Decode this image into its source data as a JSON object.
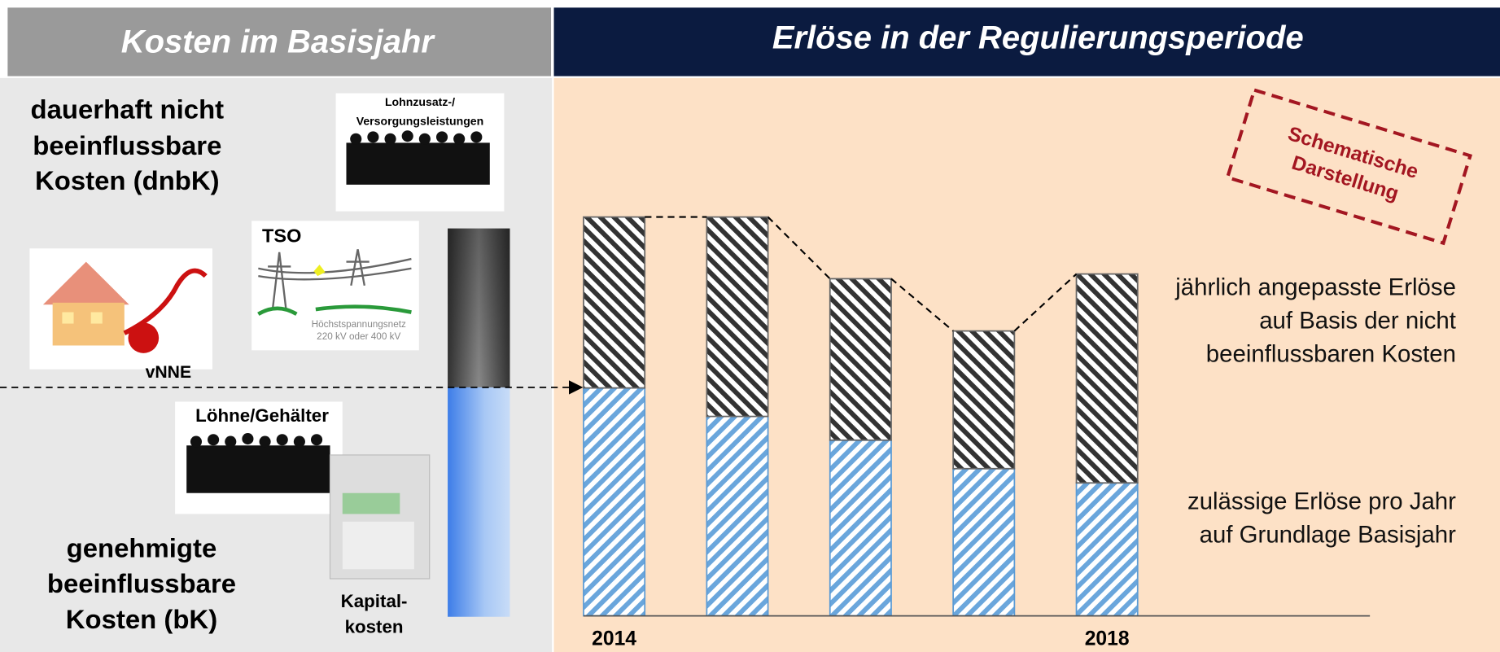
{
  "header": {
    "left_title": "Kosten im Basisjahr",
    "right_title": "Erlöse in der Regulierungsperiode"
  },
  "left": {
    "dnbk_lines": [
      "dauerhaft nicht",
      "beeinflussbare",
      "Kosten (dnbK)"
    ],
    "bk_lines": [
      "genehmigte",
      "beeinflussbare",
      "Kosten (bK)"
    ],
    "pensions_lines": [
      "Lohnzusatz-/",
      "Versorgungsleistungen"
    ],
    "tso": "TSO",
    "grid_lines": [
      "Höchstspannungsnetz",
      "220 kV oder 400 kV"
    ],
    "vnne": "vNNE",
    "wages": "Löhne/Gehälter",
    "capital_lines": [
      "Kapital-",
      "kosten"
    ]
  },
  "stamp_lines": [
    "Schematische",
    "Darstellung"
  ],
  "chart_data": {
    "type": "stacked-bar",
    "categories": [
      "2014",
      null,
      null,
      null,
      "2018"
    ],
    "series": [
      {
        "name": "zulässige Erlöse pro Jahr auf Grundlage Basisjahr",
        "color": "#5b9bd5",
        "values": [
          24,
          21,
          18.5,
          15.5,
          14
        ]
      },
      {
        "name": "jährlich angepasste Erlöse auf Basis der nicht beeinflussbaren Kosten",
        "color": "#333333",
        "values": [
          18,
          21,
          17,
          14.5,
          22
        ]
      }
    ],
    "ylim": [
      0,
      42
    ]
  }
}
